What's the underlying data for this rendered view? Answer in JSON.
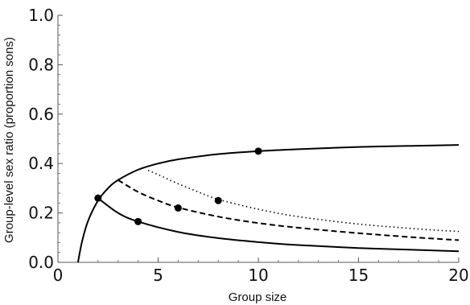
{
  "chart_data": {
    "type": "line",
    "title": "",
    "xlabel": "Group size",
    "ylabel": "Group-level sex ratio (proportion sons)",
    "xlim": [
      0,
      20
    ],
    "ylim": [
      0,
      1.0
    ],
    "x_ticks": [
      0,
      5,
      10,
      15,
      20
    ],
    "x_tick_labels": [
      "0",
      "5",
      "10",
      "15",
      "20"
    ],
    "y_ticks": [
      0,
      0.2,
      0.4,
      0.6,
      0.8,
      1.0
    ],
    "y_tick_labels": [
      "0.0",
      "0.2",
      "0.4",
      "0.6",
      "0.8",
      "1.0"
    ],
    "grid": false,
    "series": [
      {
        "style": "solid",
        "x": [
          1,
          1.2,
          1.5,
          2,
          2.5,
          3,
          4,
          5,
          6,
          8,
          10,
          12,
          15,
          18,
          20
        ],
        "y": [
          0,
          0.083,
          0.167,
          0.25,
          0.3,
          0.333,
          0.375,
          0.4,
          0.417,
          0.438,
          0.45,
          0.458,
          0.467,
          0.472,
          0.475
        ]
      },
      {
        "style": "solid",
        "x": [
          2,
          3,
          4,
          6,
          8,
          10,
          12,
          15,
          18,
          20
        ],
        "y": [
          0.26,
          0.2,
          0.165,
          0.123,
          0.098,
          0.082,
          0.07,
          0.058,
          0.05,
          0.045
        ]
      },
      {
        "style": "dashed",
        "x": [
          3,
          4,
          5,
          6,
          8,
          10,
          12,
          15,
          18,
          20
        ],
        "y": [
          0.333,
          0.285,
          0.25,
          0.222,
          0.185,
          0.159,
          0.14,
          0.118,
          0.1,
          0.09
        ]
      },
      {
        "style": "dotted",
        "x": [
          4.5,
          5,
          6,
          7,
          8,
          10,
          12,
          15,
          18,
          20
        ],
        "y": [
          0.372,
          0.355,
          0.318,
          0.285,
          0.255,
          0.215,
          0.185,
          0.155,
          0.135,
          0.125
        ]
      }
    ],
    "points": [
      {
        "x": 2,
        "y": 0.26
      },
      {
        "x": 4,
        "y": 0.165
      },
      {
        "x": 6,
        "y": 0.22
      },
      {
        "x": 8,
        "y": 0.25
      },
      {
        "x": 10,
        "y": 0.45
      }
    ]
  }
}
